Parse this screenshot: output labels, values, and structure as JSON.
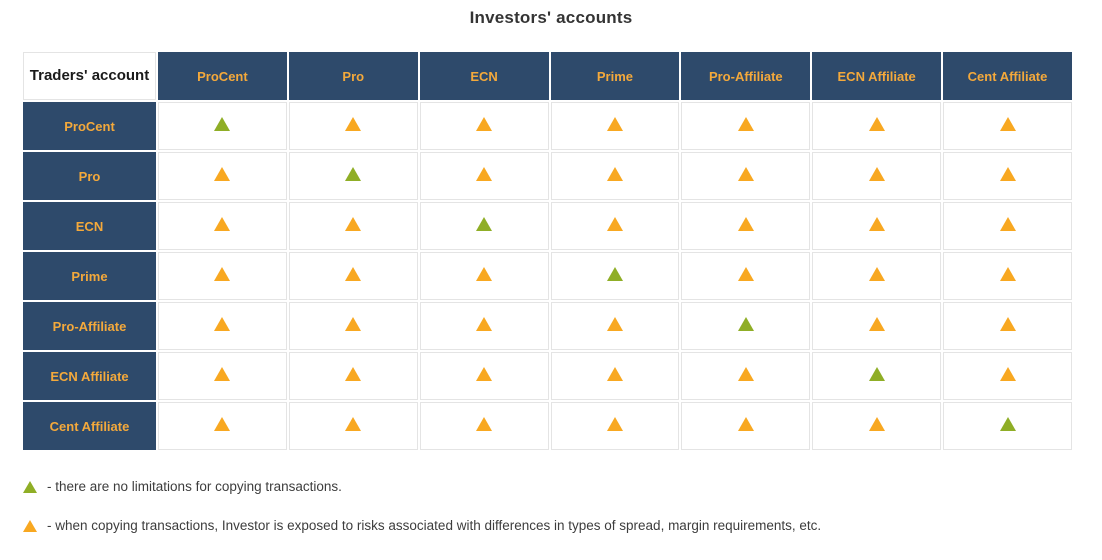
{
  "title": "Investors' accounts",
  "corner_label": "Traders' account",
  "columns": [
    "ProCent",
    "Pro",
    "ECN",
    "Prime",
    "Pro-Affiliate",
    "ECN Affiliate",
    "Cent Affiliate"
  ],
  "rows": [
    "ProCent",
    "Pro",
    "ECN",
    "Prime",
    "Pro-Affiliate",
    "ECN Affiliate",
    "Cent Affiliate"
  ],
  "matrix": [
    [
      "green",
      "orange",
      "orange",
      "orange",
      "orange",
      "orange",
      "orange"
    ],
    [
      "orange",
      "green",
      "orange",
      "orange",
      "orange",
      "orange",
      "orange"
    ],
    [
      "orange",
      "orange",
      "green",
      "orange",
      "orange",
      "orange",
      "orange"
    ],
    [
      "orange",
      "orange",
      "orange",
      "green",
      "orange",
      "orange",
      "orange"
    ],
    [
      "orange",
      "orange",
      "orange",
      "orange",
      "green",
      "orange",
      "orange"
    ],
    [
      "orange",
      "orange",
      "orange",
      "orange",
      "orange",
      "green",
      "orange"
    ],
    [
      "orange",
      "orange",
      "orange",
      "orange",
      "orange",
      "orange",
      "green"
    ]
  ],
  "legend": {
    "items": [
      {
        "icon": "green-triangle",
        "text": "- there are no limitations for copying transactions."
      },
      {
        "icon": "orange-triangle",
        "text": "- when copying transactions, Investor is exposed to risks associated with differences in types of spread, margin requirements, etc."
      }
    ]
  },
  "colors": {
    "header_bg": "#2e4a6b",
    "header_text": "#f4a93b",
    "green": "#8fae26",
    "orange": "#f8a821",
    "border": "#e4e4e4",
    "title_text": "#343434",
    "body_text": "#3d3d3d"
  }
}
